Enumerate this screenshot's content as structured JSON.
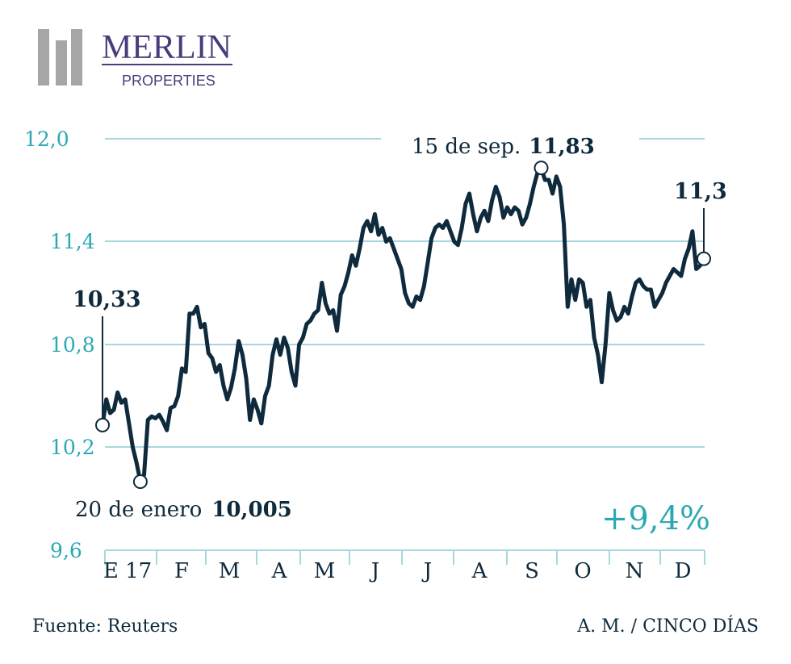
{
  "logo": {
    "name": "MERLIN",
    "subtitle": "PROPERTIES"
  },
  "footer": {
    "source": "Fuente: Reuters",
    "credit": "A. M. / CINCO DÍAS"
  },
  "colors": {
    "line": "#0e2a3c",
    "accent": "#2aa8b3",
    "grid": "#a8d7dd",
    "dark_text": "#0e2a3c",
    "logo_purple": "#4b3b7c",
    "logo_gray": "#a6a6a6"
  },
  "chart_data": {
    "type": "line",
    "ylim": [
      9.6,
      12.0
    ],
    "yticks": [
      "12,0",
      "11,4",
      "10,8",
      "10,2",
      "9,6"
    ],
    "ytick_values": [
      12.0,
      11.4,
      10.8,
      10.2,
      9.6
    ],
    "month_labels": [
      "E 17",
      "F",
      "M",
      "A",
      "M",
      "J",
      "J",
      "A",
      "S",
      "O",
      "N",
      "D"
    ],
    "change_label": "+9,4%",
    "annotations": {
      "start": {
        "value": "10,33"
      },
      "min": {
        "date_text": "20 de enero",
        "value": "10,005"
      },
      "max": {
        "date_text": "15 de sep.",
        "value": "11,83"
      },
      "end": {
        "value": "11,3"
      }
    },
    "series": [
      {
        "values": [
          10.33,
          10.48,
          10.4,
          10.42,
          10.52,
          10.46,
          10.48,
          10.34,
          10.2,
          10.11,
          10.0,
          10.04,
          10.36,
          10.38,
          10.37,
          10.39,
          10.35,
          10.3,
          10.43,
          10.44,
          10.5,
          10.66,
          10.64,
          10.98,
          10.98,
          11.02,
          10.9,
          10.92,
          10.75,
          10.72,
          10.64,
          10.68,
          10.56,
          10.48,
          10.55,
          10.66,
          10.82,
          10.74,
          10.6,
          10.36,
          10.48,
          10.42,
          10.34,
          10.5,
          10.56,
          10.74,
          10.83,
          10.74,
          10.84,
          10.78,
          10.64,
          10.56,
          10.8,
          10.84,
          10.92,
          10.94,
          10.98,
          11.0,
          11.16,
          11.04,
          10.98,
          11.0,
          10.88,
          11.09,
          11.14,
          11.22,
          11.32,
          11.26,
          11.36,
          11.48,
          11.52,
          11.46,
          11.56,
          11.44,
          11.48,
          11.4,
          11.42,
          11.36,
          11.3,
          11.24,
          11.1,
          11.04,
          11.02,
          11.08,
          11.06,
          11.14,
          11.28,
          11.42,
          11.48,
          11.5,
          11.48,
          11.52,
          11.46,
          11.4,
          11.38,
          11.48,
          11.62,
          11.68,
          11.56,
          11.46,
          11.54,
          11.58,
          11.52,
          11.64,
          11.72,
          11.66,
          11.54,
          11.6,
          11.56,
          11.6,
          11.58,
          11.5,
          11.54,
          11.62,
          11.72,
          11.8,
          11.83,
          11.76,
          11.76,
          11.68,
          11.78,
          11.72,
          11.5,
          11.02,
          11.18,
          11.06,
          11.18,
          11.16,
          11.02,
          11.06,
          10.84,
          10.74,
          10.58,
          10.8,
          11.1,
          11.0,
          10.94,
          10.96,
          11.02,
          10.98,
          11.08,
          11.16,
          11.18,
          11.14,
          11.12,
          11.12,
          11.02,
          11.06,
          11.1,
          11.16,
          11.2,
          11.24,
          11.22,
          11.2,
          11.3,
          11.36,
          11.46,
          11.24,
          11.26,
          11.3
        ]
      }
    ]
  }
}
